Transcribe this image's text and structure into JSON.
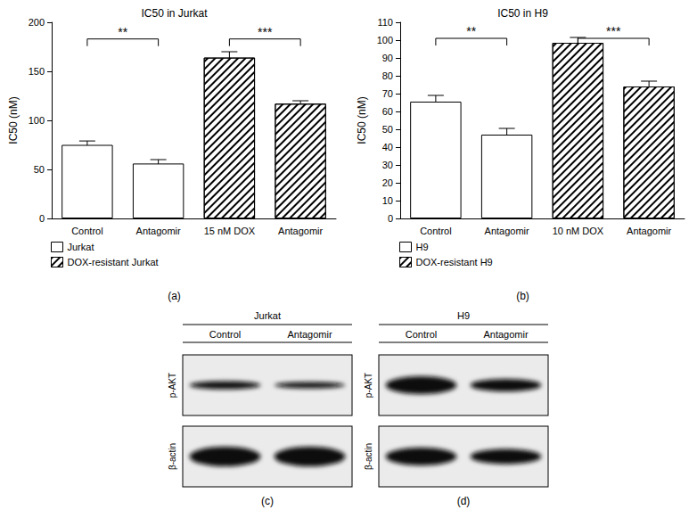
{
  "chart_data": [
    {
      "type": "bar",
      "panel_label": "(a)",
      "title": "IC50 in Jurkat",
      "y_label": "IC50 (nM)",
      "categories": [
        "Control",
        "Antagomir",
        "15 nM DOX",
        "Antagomir"
      ],
      "series": [
        {
          "name": "Jurkat",
          "color": "#ffffff",
          "values": [
            75,
            56,
            null,
            null
          ],
          "errors": [
            4,
            4,
            null,
            null
          ]
        },
        {
          "name": "DOX-resistant Jurkat",
          "color": "#ffffff",
          "values": [
            null,
            null,
            164,
            117
          ],
          "errors": [
            null,
            null,
            6,
            3
          ]
        }
      ],
      "ylim": [
        0,
        200
      ],
      "yticks": [
        0,
        50,
        100,
        150,
        200
      ],
      "grid": false,
      "legend": "lower left",
      "annotations": [
        {
          "text": "**",
          "from_index": 0,
          "to_index": 1,
          "y": 183
        },
        {
          "text": "***",
          "from_index": 2,
          "to_index": 3,
          "y": 183
        }
      ]
    },
    {
      "type": "bar",
      "panel_label": "(b)",
      "title": "IC50 in H9",
      "y_label": "IC50 (nM)",
      "categories": [
        "Control",
        "Antagomir",
        "10 nM DOX",
        "Antagomir"
      ],
      "series": [
        {
          "name": "H9",
          "color": "#ffffff",
          "values": [
            65.5,
            47,
            null,
            null
          ],
          "errors": [
            3.5,
            3.5,
            null,
            null
          ]
        },
        {
          "name": "DOX-resistant H9",
          "color": "#ffffff",
          "values": [
            null,
            null,
            98.5,
            74
          ],
          "errors": [
            null,
            null,
            3,
            3
          ]
        }
      ],
      "ylim": [
        0,
        110
      ],
      "yticks": [
        0,
        10,
        20,
        30,
        40,
        50,
        60,
        70,
        80,
        90,
        100,
        110
      ],
      "grid": false,
      "legend": "lower left",
      "annotations": [
        {
          "text": "**",
          "from_index": 0,
          "to_index": 1,
          "y": 101
        },
        {
          "text": "***",
          "from_index": 2,
          "to_index": 3,
          "y": 101
        }
      ]
    }
  ],
  "blots": [
    {
      "panel_label": "(c)",
      "cell_line": "Jurkat",
      "lanes": [
        "Control",
        "Antagomir"
      ],
      "rows": [
        "p-AKT",
        "β-actin"
      ]
    },
    {
      "panel_label": "(d)",
      "cell_line": "H9",
      "lanes": [
        "Control",
        "Antagomir"
      ],
      "rows": [
        "p-AKT",
        "β-actin"
      ]
    }
  ]
}
